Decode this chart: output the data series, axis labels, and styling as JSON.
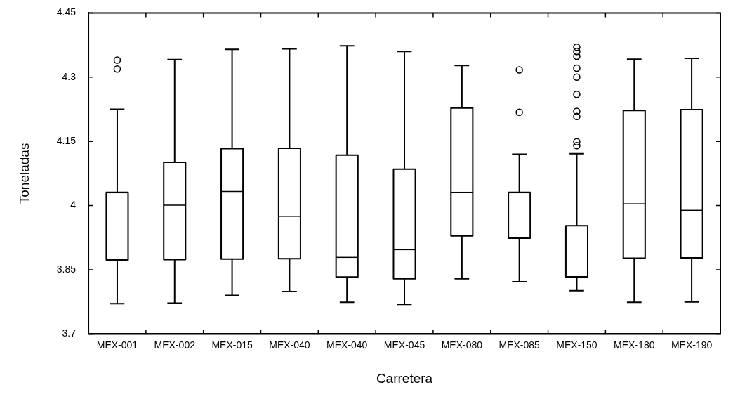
{
  "chart_data": {
    "type": "box",
    "xlabel": "Carretera",
    "ylabel": "Toneladas",
    "categories": [
      "MEX-001",
      "MEX-002",
      "MEX-015",
      "MEX-040",
      "MEX-040",
      "MEX-045",
      "MEX-080",
      "MEX-085",
      "MEX-150",
      "MEX-180",
      "MEX-190"
    ],
    "boxes": [
      {
        "low": 3.771,
        "q1": 3.873,
        "median": 4.03,
        "q3": 4.031,
        "high": 4.225,
        "outliers": [
          4.34,
          4.319
        ]
      },
      {
        "low": 3.772,
        "q1": 3.874,
        "median": 4.001,
        "q3": 4.101,
        "high": 4.341
      },
      {
        "low": 3.79,
        "q1": 3.875,
        "median": 4.033,
        "q3": 4.133,
        "high": 4.365
      },
      {
        "low": 3.799,
        "q1": 3.876,
        "median": 3.975,
        "q3": 4.134,
        "high": 4.366
      },
      {
        "low": 3.774,
        "q1": 3.833,
        "median": 3.879,
        "q3": 4.118,
        "high": 4.373
      },
      {
        "low": 3.769,
        "q1": 3.829,
        "median": 3.897,
        "q3": 4.085,
        "high": 4.36
      },
      {
        "low": 3.829,
        "q1": 3.929,
        "median": 4.031,
        "q3": 4.228,
        "high": 4.327
      },
      {
        "low": 3.822,
        "q1": 3.924,
        "median": 4.03,
        "q3": 4.031,
        "high": 4.12,
        "outliers": [
          4.317,
          4.218
        ]
      },
      {
        "low": 3.801,
        "q1": 3.833,
        "median": 3.834,
        "q3": 3.953,
        "high": 4.121,
        "outliers": [
          4.37,
          4.36,
          4.349,
          4.321,
          4.3,
          4.26,
          4.22,
          4.208,
          4.149,
          4.14
        ]
      },
      {
        "low": 3.774,
        "q1": 3.877,
        "median": 4.004,
        "q3": 4.222,
        "high": 4.342
      },
      {
        "low": 3.775,
        "q1": 3.878,
        "median": 3.989,
        "q3": 4.224,
        "high": 4.344
      }
    ],
    "color": "#000000",
    "marker": "circle",
    "ylim": [
      3.7,
      4.45
    ],
    "yticks": [
      3.7,
      3.85,
      4,
      4.15,
      4.3,
      4.45
    ],
    "grid": false,
    "legend": false
  }
}
